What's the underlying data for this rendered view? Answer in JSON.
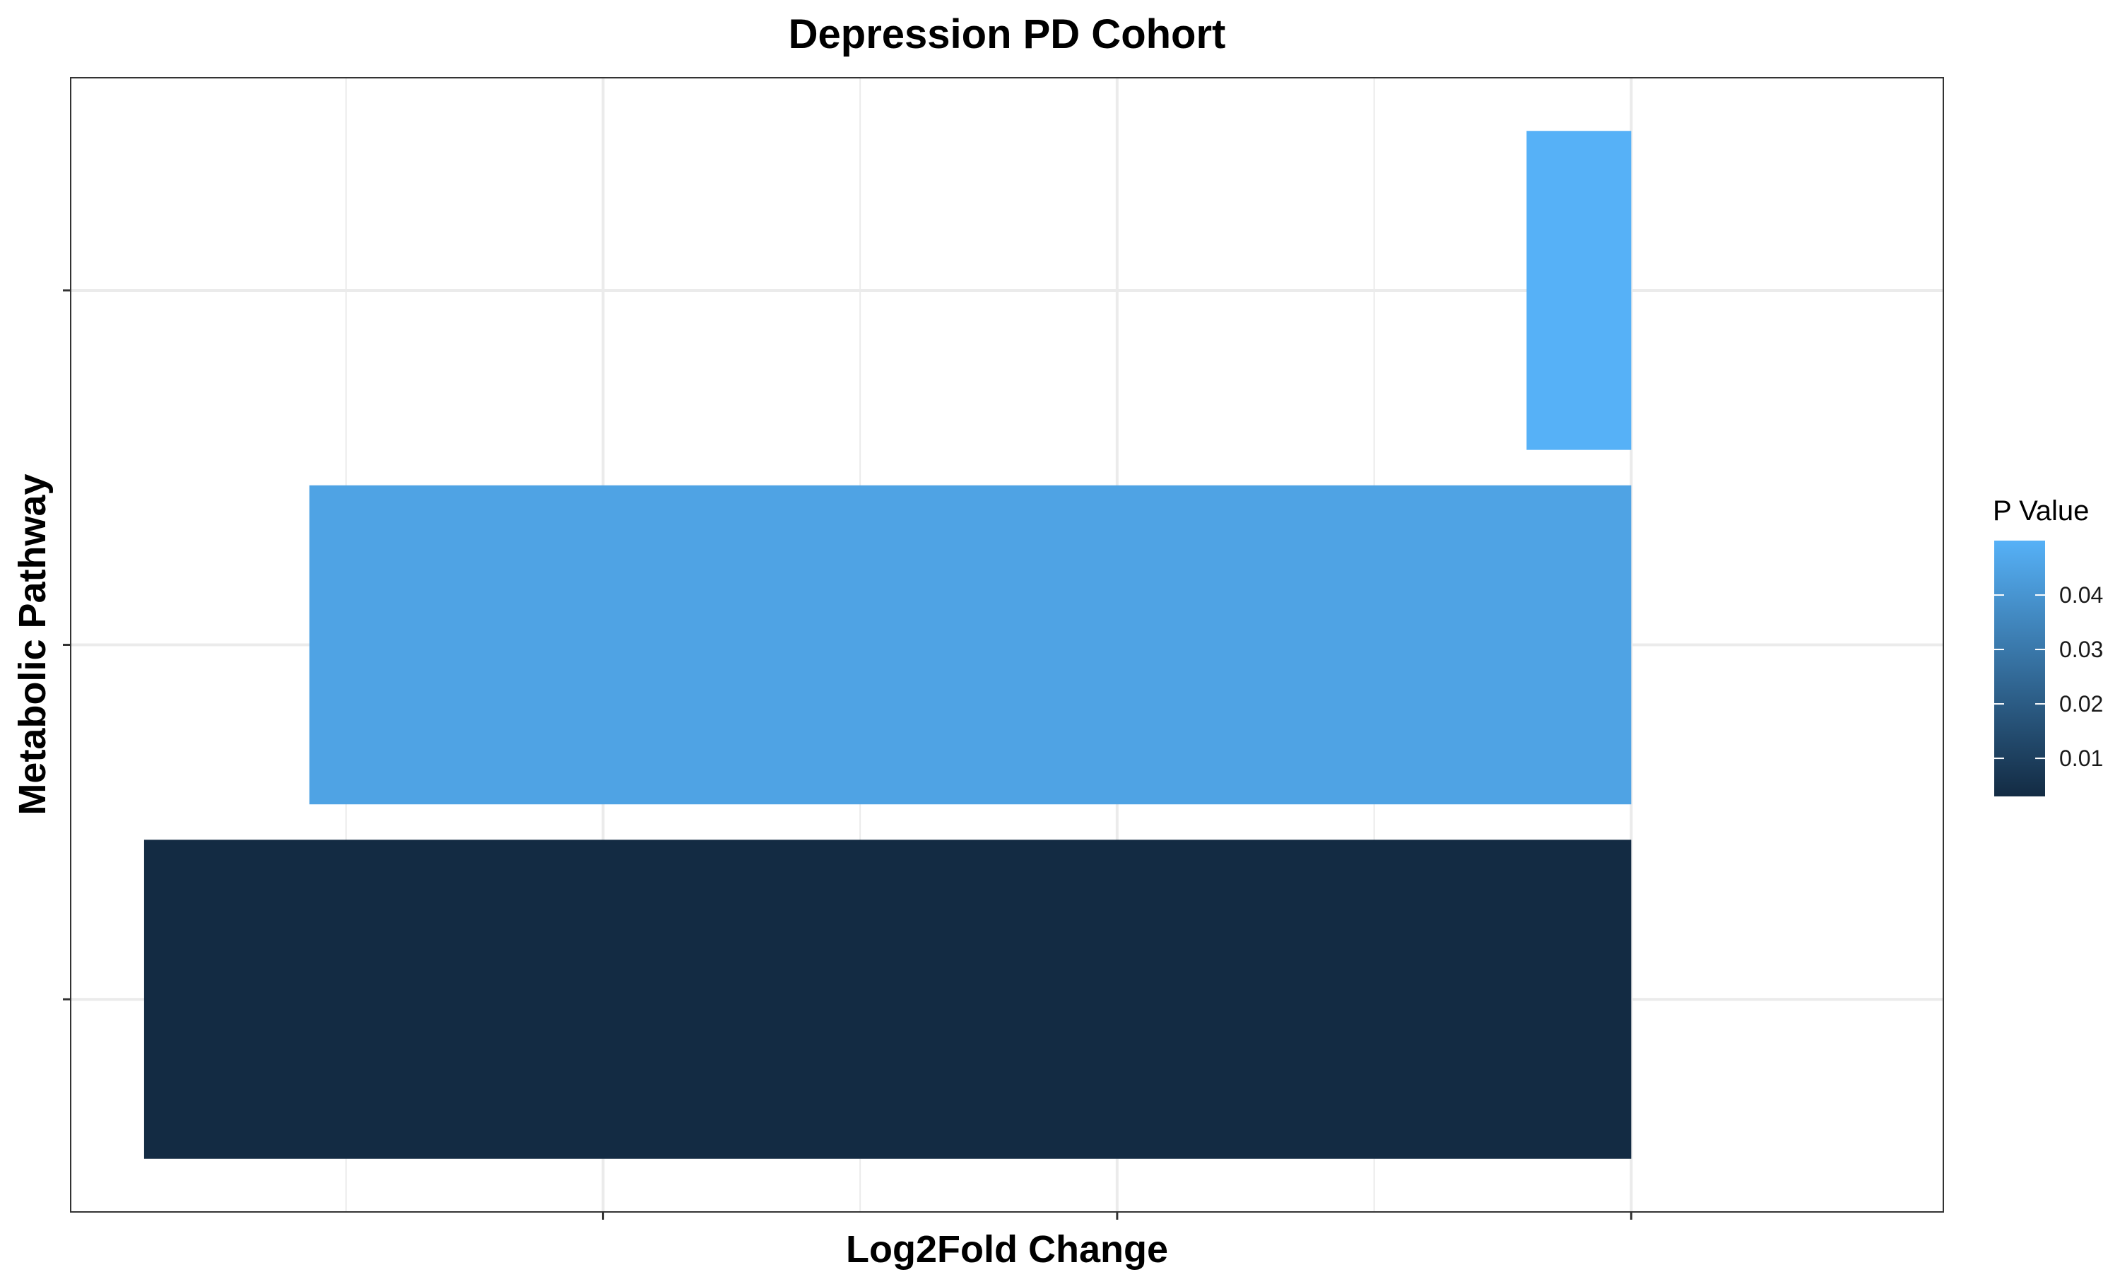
{
  "chart_data": {
    "type": "bar",
    "orientation": "horizontal",
    "title": "Depression PD Cohort",
    "xlabel": "Log2Fold Change",
    "ylabel": "Metabolic Pathway",
    "x_tick_labels_shown": false,
    "y_tick_labels_shown": false,
    "xlim": [
      -0.85,
      0.17
    ],
    "x_gridlines": [
      -0.7,
      -0.56,
      -0.42,
      -0.28,
      -0.14,
      0.0
    ],
    "categories": [
      "",
      "",
      ""
    ],
    "values": [
      -0.81,
      -0.72,
      -0.057
    ],
    "p_values": [
      0.003,
      0.045,
      0.05
    ],
    "grid": true,
    "legend": {
      "title": "P Value",
      "position": "right",
      "type": "colorbar",
      "range": [
        0.003,
        0.05
      ],
      "ticks": [
        {
          "value": 0.01,
          "label": "0.01"
        },
        {
          "value": 0.02,
          "label": "0.02"
        },
        {
          "value": 0.03,
          "label": "0.03"
        },
        {
          "value": 0.04,
          "label": "0.04"
        }
      ],
      "color_low": "#132B43",
      "color_high": "#56B1F7"
    }
  }
}
